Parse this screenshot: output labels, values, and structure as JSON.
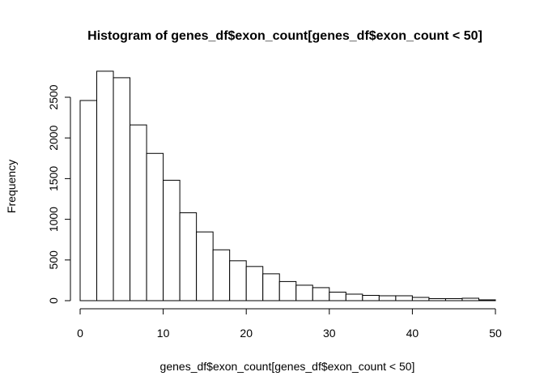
{
  "chart_data": {
    "type": "bar",
    "title": "Histogram of genes_df$exon_count[genes_df$exon_count < 50]",
    "xlabel": "genes_df$exon_count[genes_df$exon_count < 50]",
    "ylabel": "Frequency",
    "xlim": [
      0,
      50
    ],
    "ylim": [
      0,
      2750
    ],
    "x_ticks": [
      "0",
      "10",
      "20",
      "30",
      "40",
      "50"
    ],
    "y_ticks": [
      "0",
      "500",
      "1000",
      "1500",
      "2000",
      "2500"
    ],
    "bin_edges": [
      0,
      2,
      4,
      6,
      8,
      10,
      12,
      14,
      16,
      18,
      20,
      22,
      24,
      26,
      28,
      30,
      32,
      34,
      36,
      38,
      40,
      42,
      44,
      46,
      48,
      50
    ],
    "values": [
      2460,
      2820,
      2740,
      2160,
      1810,
      1480,
      1080,
      845,
      625,
      490,
      420,
      330,
      235,
      190,
      160,
      105,
      80,
      65,
      60,
      60,
      40,
      25,
      25,
      30,
      10
    ],
    "bar_fill": "#ffffff",
    "bar_stroke": "#000000",
    "grid": false
  }
}
